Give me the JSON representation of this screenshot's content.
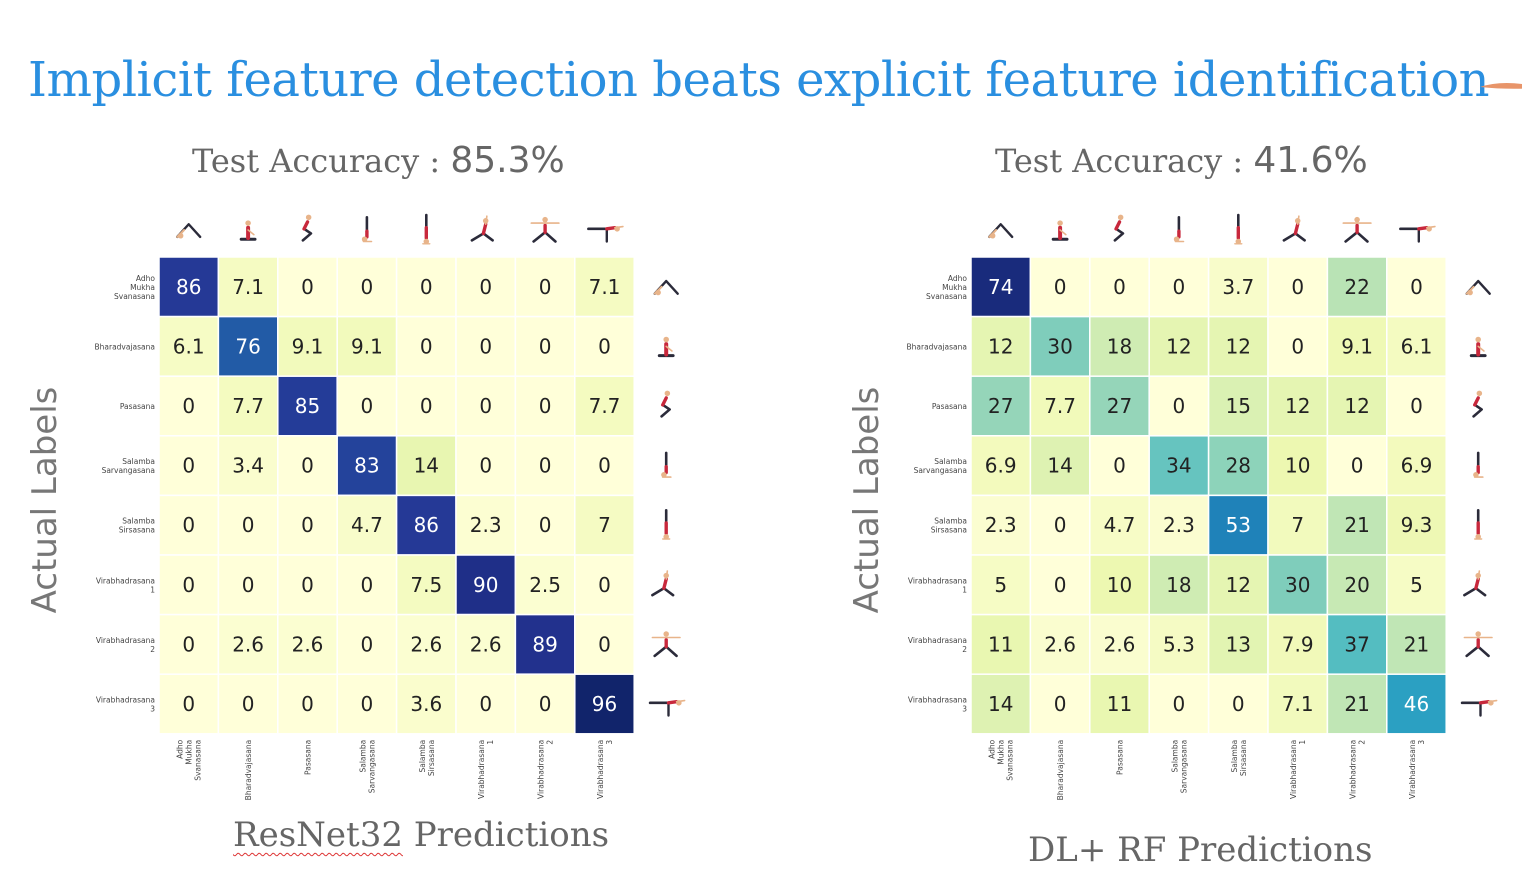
{
  "slide": {
    "title": "Implicit feature detection beats explicit feature identification"
  },
  "left_panel": {
    "accuracy_label": "Test Accuracy : ",
    "accuracy_value": "85.3%",
    "y_label": "Actual Labels",
    "x_label_model": "ResNet32",
    "x_label_rest": " Predictions"
  },
  "right_panel": {
    "accuracy_label": "Test Accuracy : ",
    "accuracy_value": "41.6%",
    "y_label": "Actual Labels",
    "x_label": "DL+ RF Predictions"
  },
  "icon_names": [
    "downward-dog-icon",
    "seated-twist-icon",
    "squat-twist-icon",
    "shoulder-stand-icon",
    "headstand-icon",
    "warrior-1-icon",
    "warrior-2-icon",
    "warrior-3-icon"
  ],
  "colors": {
    "title": "#2a8fe0",
    "scale_low": "#ffffd9",
    "scale_high": "#081d58"
  },
  "chart_data": [
    {
      "type": "heatmap",
      "title": "",
      "xlabel": "ResNet32 Predictions",
      "ylabel": "Actual Labels",
      "row_labels": [
        [
          "Adho",
          "Mukha",
          "Svanasana"
        ],
        [
          "Bharadvajasana"
        ],
        [
          "Pasasana"
        ],
        [
          "Salamba",
          "Sarvangasana"
        ],
        [
          "Salamba",
          "Sirsasana"
        ],
        [
          "Virabhadrasana",
          "1"
        ],
        [
          "Virabhadrasana",
          "2"
        ],
        [
          "Virabhadrasana",
          "3"
        ]
      ],
      "col_labels": [
        [
          "Adho",
          "Mukha",
          "Svanasana"
        ],
        [
          "Bharadvajasana"
        ],
        [
          "Pasasana"
        ],
        [
          "Salamba",
          "Sarvangasana"
        ],
        [
          "Salamba",
          "Sirsasana"
        ],
        [
          "Virabhadrasana",
          "1"
        ],
        [
          "Virabhadrasana",
          "2"
        ],
        [
          "Virabhadrasana",
          "3"
        ]
      ],
      "values": [
        [
          "86",
          "7.1",
          "0",
          "0",
          "0",
          "0",
          "0",
          "7.1"
        ],
        [
          "6.1",
          "76",
          "9.1",
          "9.1",
          "0",
          "0",
          "0",
          "0"
        ],
        [
          "0",
          "7.7",
          "85",
          "0",
          "0",
          "0",
          "0",
          "7.7"
        ],
        [
          "0",
          "3.4",
          "0",
          "83",
          "14",
          "0",
          "0",
          "0"
        ],
        [
          "0",
          "0",
          "0",
          "4.7",
          "86",
          "2.3",
          "0",
          "7"
        ],
        [
          "0",
          "0",
          "0",
          "0",
          "7.5",
          "90",
          "2.5",
          "0"
        ],
        [
          "0",
          "2.6",
          "2.6",
          "0",
          "2.6",
          "2.6",
          "89",
          "0"
        ],
        [
          "0",
          "0",
          "0",
          "0",
          "3.6",
          "0",
          "0",
          "96"
        ]
      ],
      "value_range": [
        0,
        100
      ],
      "colormap": "YlGnBu"
    },
    {
      "type": "heatmap",
      "title": "",
      "xlabel": "DL+ RF Predictions",
      "ylabel": "Actual Labels",
      "row_labels": [
        [
          "Adho",
          "Mukha",
          "Svanasana"
        ],
        [
          "Bharadvajasana"
        ],
        [
          "Pasasana"
        ],
        [
          "Salamba",
          "Sarvangasana"
        ],
        [
          "Salamba",
          "Sirsasana"
        ],
        [
          "Virabhadrasana",
          "1"
        ],
        [
          "Virabhadrasana",
          "2"
        ],
        [
          "Virabhadrasana",
          "3"
        ]
      ],
      "col_labels": [
        [
          "Adho",
          "Mukha",
          "Svanasana"
        ],
        [
          "Bharadvajasana"
        ],
        [
          "Pasasana"
        ],
        [
          "Salamba",
          "Sarvangasana"
        ],
        [
          "Salamba",
          "Sirsasana"
        ],
        [
          "Virabhadrasana",
          "1"
        ],
        [
          "Virabhadrasana",
          "2"
        ],
        [
          "Virabhadrasana",
          "3"
        ]
      ],
      "values": [
        [
          "74",
          "0",
          "0",
          "0",
          "3.7",
          "0",
          "22",
          "0"
        ],
        [
          "12",
          "30",
          "18",
          "12",
          "12",
          "0",
          "9.1",
          "6.1"
        ],
        [
          "27",
          "7.7",
          "27",
          "0",
          "15",
          "12",
          "12",
          "0"
        ],
        [
          "6.9",
          "14",
          "0",
          "34",
          "28",
          "10",
          "0",
          "6.9"
        ],
        [
          "2.3",
          "0",
          "4.7",
          "2.3",
          "53",
          "7",
          "21",
          "9.3"
        ],
        [
          "5",
          "0",
          "10",
          "18",
          "12",
          "30",
          "20",
          "5"
        ],
        [
          "11",
          "2.6",
          "2.6",
          "5.3",
          "13",
          "7.9",
          "37",
          "21"
        ],
        [
          "14",
          "0",
          "11",
          "0",
          "0",
          "7.1",
          "21",
          "46"
        ]
      ],
      "value_range": [
        0,
        80
      ],
      "colormap": "YlGnBu"
    }
  ]
}
